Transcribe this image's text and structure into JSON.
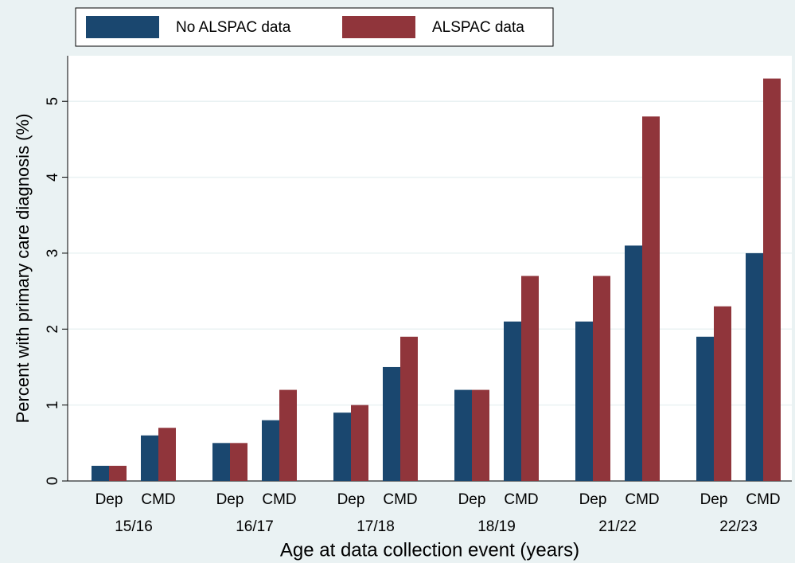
{
  "chart_data": {
    "type": "bar",
    "y_label": "Percent with primary care diagnosis (%)",
    "x_label": "Age at data collection event (years)",
    "categories": [
      "Dep",
      "CMD",
      "Dep",
      "CMD",
      "Dep",
      "CMD",
      "Dep",
      "CMD",
      "Dep",
      "CMD",
      "Dep",
      "CMD"
    ],
    "groups": [
      "15/16",
      "16/17",
      "17/18",
      "18/19",
      "21/22",
      "22/23"
    ],
    "series": [
      {
        "name": "No ALSPAC data",
        "color": "#1a476f",
        "values": [
          0.2,
          0.6,
          0.5,
          0.8,
          0.9,
          1.5,
          1.2,
          2.1,
          2.1,
          3.1,
          1.9,
          3.0
        ]
      },
      {
        "name": "ALSPAC data",
        "color": "#90353b",
        "values": [
          0.2,
          0.7,
          0.5,
          1.2,
          1.0,
          1.9,
          1.2,
          2.7,
          2.7,
          4.8,
          2.3,
          5.3
        ]
      }
    ],
    "ylim": [
      0,
      5.6
    ],
    "yticks": [
      0,
      1,
      2,
      3,
      4,
      5
    ],
    "grid": true,
    "legend": "top"
  }
}
